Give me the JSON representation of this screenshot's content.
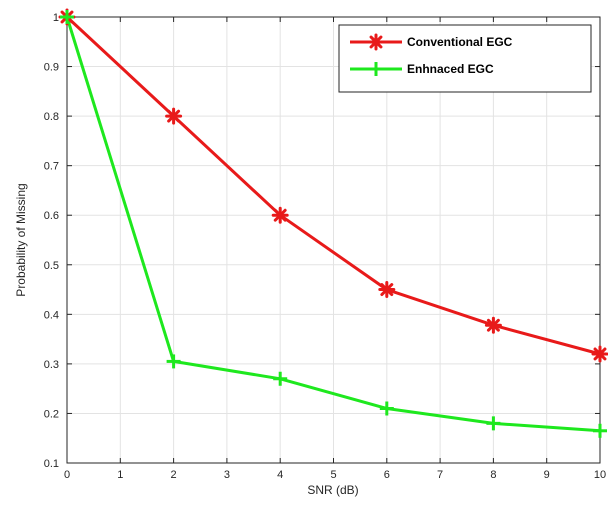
{
  "chart_data": {
    "type": "line",
    "title": "",
    "xlabel": "SNR (dB)",
    "ylabel": "Probability of Missing",
    "xlim": [
      0,
      10
    ],
    "ylim": [
      0.1,
      1
    ],
    "xticks": [
      0,
      1,
      2,
      3,
      4,
      5,
      6,
      7,
      8,
      9,
      10
    ],
    "yticks": [
      0.1,
      0.2,
      0.3,
      0.4,
      0.5,
      0.6,
      0.7,
      0.8,
      0.9,
      1
    ],
    "grid": true,
    "legend_position": "top-right",
    "series": [
      {
        "name": "Conventional EGC",
        "color": "#e81a1a",
        "marker": "asterisk",
        "x": [
          0,
          2,
          4,
          6,
          8,
          10
        ],
        "y": [
          1.0,
          0.8,
          0.6,
          0.45,
          0.378,
          0.32
        ]
      },
      {
        "name": "Enhnaced EGC",
        "color": "#1ee81e",
        "marker": "plus",
        "x": [
          0,
          2,
          4,
          6,
          8,
          10
        ],
        "y": [
          1.0,
          0.305,
          0.27,
          0.21,
          0.18,
          0.165
        ]
      }
    ]
  }
}
